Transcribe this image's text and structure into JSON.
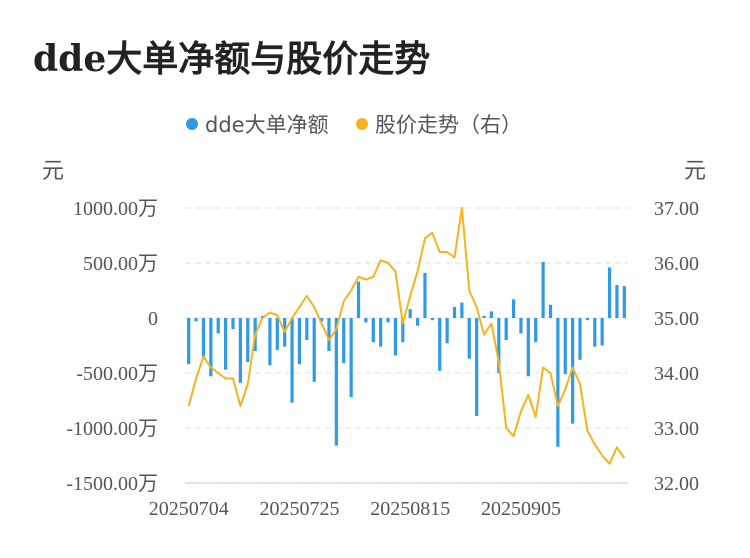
{
  "title": "dde大单净额与股价走势",
  "chart_data": {
    "type": "bar+line",
    "legend": [
      {
        "name": "dde大单净额",
        "color": "#2f9be6"
      },
      {
        "name": "股价走势（右）",
        "color": "#f5b41e"
      }
    ],
    "left_axis": {
      "unit": "元",
      "ticks": [
        "1000.00万",
        "500.00万",
        "0",
        "-500.00万",
        "-1000.00万",
        "-1500.00万"
      ],
      "range": [
        -1500,
        1000
      ]
    },
    "right_axis": {
      "unit": "元",
      "ticks": [
        "37.00",
        "36.00",
        "35.00",
        "34.00",
        "33.00",
        "32.00"
      ],
      "range": [
        32,
        37
      ]
    },
    "x_ticks": [
      "20250704",
      "20250725",
      "20250815",
      "20250905"
    ],
    "bar_color": "#2f9be6",
    "line_color": "#f5b41e",
    "bars": [
      -420,
      -30,
      -350,
      -530,
      -140,
      -470,
      -100,
      -590,
      -400,
      -300,
      20,
      -430,
      -290,
      -260,
      -770,
      -420,
      -200,
      -580,
      -30,
      -300,
      -1160,
      -410,
      -720,
      330,
      -40,
      -220,
      -260,
      -40,
      -340,
      -220,
      80,
      -70,
      410,
      -20,
      -480,
      -230,
      100,
      140,
      -370,
      -890,
      20,
      60,
      -500,
      -200,
      170,
      -140,
      -530,
      -220,
      510,
      120,
      -1170,
      -510,
      -960,
      -380,
      -20,
      -260,
      -250,
      460,
      300,
      290
    ],
    "prices": [
      33.4,
      33.9,
      34.3,
      34.1,
      34.0,
      33.9,
      33.9,
      33.4,
      33.8,
      34.7,
      35.0,
      35.1,
      35.05,
      34.75,
      35.0,
      35.2,
      35.4,
      35.2,
      34.9,
      34.6,
      34.8,
      35.3,
      35.5,
      35.75,
      35.7,
      35.75,
      36.05,
      36.0,
      35.85,
      34.9,
      35.4,
      35.85,
      36.45,
      36.55,
      36.2,
      36.2,
      36.1,
      37.0,
      35.5,
      35.2,
      34.7,
      34.9,
      34.2,
      33.0,
      32.85,
      33.3,
      33.6,
      33.2,
      34.1,
      34.0,
      33.4,
      33.7,
      34.1,
      33.8,
      32.95,
      32.7,
      32.5,
      32.35,
      32.65,
      32.45
    ]
  }
}
